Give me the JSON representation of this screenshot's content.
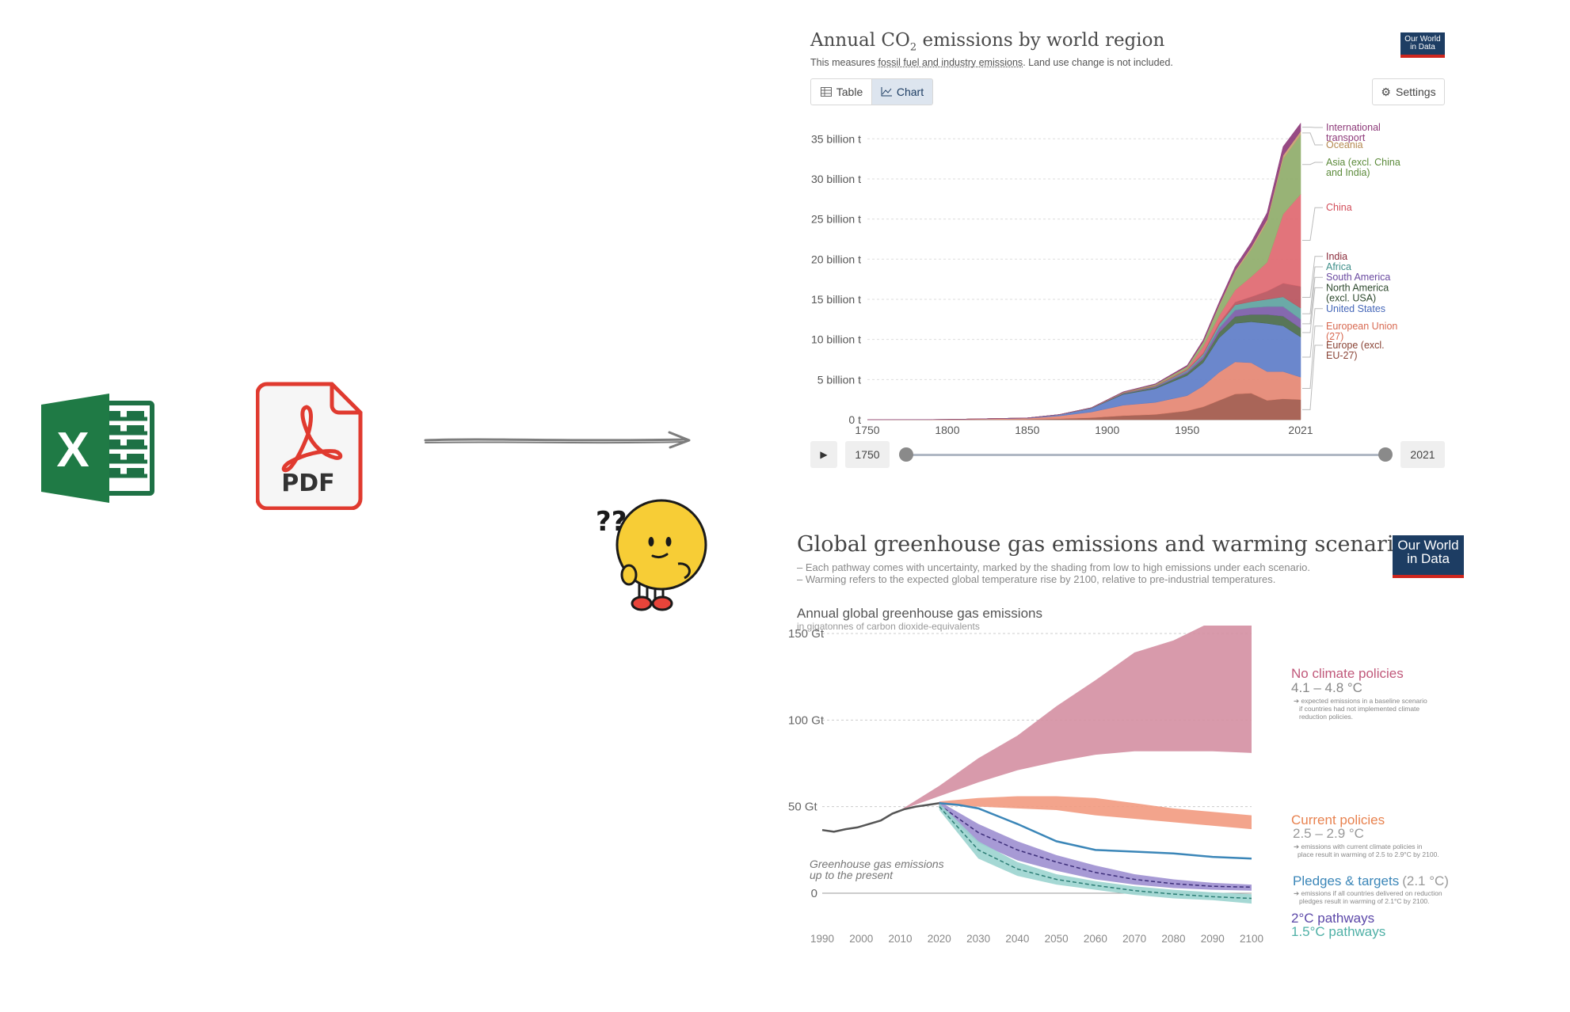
{
  "icons": {
    "excel": "excel-icon",
    "pdf": "pdf-icon",
    "arrow": "right-arrow",
    "mascot": "confused-emoji-mascot"
  },
  "pdf_label": "PDF",
  "excel_letter": "X",
  "mascot_marks": "??",
  "chart1": {
    "title_pre": "Annual CO",
    "title_sub": "2",
    "title_post": " emissions by world region",
    "subtitle_pre": "This measures ",
    "subtitle_link": "fossil fuel and industry emissions",
    "subtitle_post": ". Land use change is not included.",
    "logo_line1": "Our World",
    "logo_line2": "in Data",
    "tab_table": "Table",
    "tab_chart": "Chart",
    "settings": "Settings",
    "slider_start": "1750",
    "slider_end": "2021"
  },
  "chart2": {
    "title": "Global greenhouse gas emissions and warming scenarios",
    "note1": "– Each pathway comes with uncertainty, marked by the shading from low to high emissions under each scenario.",
    "note2": "– Warming refers to the expected global temperature rise by 2100, relative to pre-industrial temperatures.",
    "logo_line1": "Our World",
    "logo_line2": "in Data",
    "axis_title": "Annual global greenhouse gas emissions",
    "axis_subtitle": "in gigatonnes of carbon dioxide-equivalents",
    "history_label_1": "Greenhouse gas emissions",
    "history_label_2": "up to the present",
    "label_no_policy": "No climate policies",
    "temp_no_policy": "4.1 – 4.8 °C",
    "note_no_policy_1": "➔ expected emissions in a baseline scenario",
    "note_no_policy_2": "if countries had not implemented climate",
    "note_no_policy_3": "reduction policies.",
    "label_current": "Current policies",
    "temp_current": "2.5 – 2.9 °C",
    "note_current_1": "➔ emissions with current climate policies in",
    "note_current_2": "place result in warming of 2.5 to 2.9°C by 2100.",
    "label_pledges": "Pledges & targets",
    "temp_pledges": "(2.1 °C)",
    "note_pledges_1": "➔ emissions if all countries delivered on reduction",
    "note_pledges_2": "pledges result in warming of 2.1°C by 2100.",
    "label_2c": "2°C pathways",
    "label_15c": "1.5°C pathways"
  },
  "chart_data": [
    {
      "type": "area",
      "title": "Annual CO₂ emissions by world region",
      "subtitle": "This measures fossil fuel and industry emissions. Land use change is not included.",
      "xlabel": "",
      "ylabel": "",
      "xlim": [
        1750,
        2021
      ],
      "ylim": [
        0,
        37
      ],
      "x_ticks": [
        "1750",
        "1800",
        "1850",
        "1900",
        "1950",
        "2021"
      ],
      "y_ticks": [
        "0 t",
        "5 billion t",
        "10 billion t",
        "15 billion t",
        "20 billion t",
        "25 billion t",
        "30 billion t",
        "35 billion t"
      ],
      "grid": true,
      "legend": "right",
      "x": [
        1750,
        1800,
        1850,
        1870,
        1890,
        1910,
        1930,
        1950,
        1960,
        1970,
        1980,
        1990,
        2000,
        2010,
        2021
      ],
      "series": [
        {
          "name": "Europe (excl. EU-27)",
          "color": "#a2584a",
          "values": [
            0,
            0.01,
            0.05,
            0.12,
            0.25,
            0.5,
            0.65,
            1.1,
            1.6,
            2.4,
            3.2,
            3.3,
            2.4,
            2.6,
            2.5
          ]
        },
        {
          "name": "European Union (27)",
          "color": "#e58773",
          "values": [
            0,
            0.02,
            0.12,
            0.35,
            0.7,
            1.3,
            1.5,
            1.9,
            2.6,
            3.5,
            4.0,
            3.8,
            3.6,
            3.4,
            2.8
          ]
        },
        {
          "name": "United States",
          "color": "#5e7dc8",
          "values": [
            0,
            0,
            0.05,
            0.15,
            0.45,
            1.35,
            1.7,
            2.5,
            2.9,
            4.3,
            4.8,
            5.1,
            6.0,
            5.7,
            5.0
          ]
        },
        {
          "name": "North America (excl. USA)",
          "color": "#4a6a4a",
          "values": [
            0,
            0,
            0,
            0.01,
            0.03,
            0.08,
            0.15,
            0.3,
            0.45,
            0.65,
            0.85,
            0.9,
            1.1,
            1.2,
            1.1
          ]
        },
        {
          "name": "South America",
          "color": "#7b5ca8",
          "values": [
            0,
            0,
            0,
            0,
            0.01,
            0.04,
            0.08,
            0.2,
            0.35,
            0.55,
            0.8,
            0.85,
            1.0,
            1.2,
            1.1
          ]
        },
        {
          "name": "Africa",
          "color": "#5ea3a0",
          "values": [
            0,
            0,
            0,
            0,
            0.01,
            0.03,
            0.06,
            0.15,
            0.25,
            0.45,
            0.65,
            0.75,
            0.9,
            1.2,
            1.4
          ]
        },
        {
          "name": "India",
          "color": "#b8545d",
          "values": [
            0,
            0,
            0,
            0.01,
            0.02,
            0.05,
            0.08,
            0.1,
            0.15,
            0.2,
            0.35,
            0.6,
            1.0,
            1.7,
            2.7
          ]
        },
        {
          "name": "China",
          "color": "#e06870",
          "values": [
            0,
            0,
            0,
            0,
            0.01,
            0.02,
            0.03,
            0.08,
            0.8,
            0.9,
            1.5,
            2.5,
            3.6,
            8.6,
            11.5
          ]
        },
        {
          "name": "Asia (excl. China and India)",
          "color": "#8fad6a",
          "values": [
            0,
            0,
            0,
            0,
            0.01,
            0.05,
            0.12,
            0.25,
            0.5,
            1.2,
            2.2,
            3.4,
            5.0,
            6.9,
            7.4
          ]
        },
        {
          "name": "Oceania",
          "color": "#c8a070",
          "values": [
            0,
            0,
            0,
            0,
            0,
            0.01,
            0.02,
            0.05,
            0.08,
            0.14,
            0.22,
            0.28,
            0.35,
            0.43,
            0.45
          ]
        },
        {
          "name": "International transport",
          "color": "#8e3b7a",
          "values": [
            0,
            0,
            0,
            0,
            0.01,
            0.05,
            0.08,
            0.15,
            0.25,
            0.35,
            0.5,
            0.6,
            0.85,
            1.1,
            1.0
          ]
        }
      ]
    },
    {
      "type": "area",
      "title": "Global greenhouse gas emissions and warming scenarios",
      "ylabel": "Annual global greenhouse gas emissions",
      "y_unit": "in gigatonnes of carbon dioxide-equivalents",
      "xlabel": "",
      "xlim": [
        1990,
        2100
      ],
      "ylim": [
        0,
        150
      ],
      "x_ticks": [
        "1990",
        "2000",
        "2010",
        "2020",
        "2030",
        "2040",
        "2050",
        "2060",
        "2070",
        "2080",
        "2090",
        "2100"
      ],
      "y_ticks": [
        "0",
        "50 Gt",
        "100 Gt",
        "150 Gt"
      ],
      "grid": true,
      "legend": "right (direct labels)",
      "history": {
        "name": "Greenhouse gas emissions up to the present",
        "color": "#555555",
        "x": [
          1990,
          1993,
          1996,
          1999,
          2002,
          2005,
          2008,
          2011,
          2014,
          2017,
          2020
        ],
        "values": [
          36.5,
          35.5,
          37,
          38,
          40,
          42,
          46,
          48.5,
          50,
          51,
          52
        ]
      },
      "bands": [
        {
          "name": "No climate policies",
          "color": "#d48fa2",
          "x": [
            2010,
            2020,
            2030,
            2040,
            2050,
            2060,
            2070,
            2080,
            2090,
            2100
          ],
          "low": [
            48,
            56,
            64,
            71,
            76,
            80,
            82,
            82,
            82,
            81
          ],
          "high": [
            48,
            62,
            78,
            91,
            108,
            123,
            139,
            146,
            157,
            169
          ]
        },
        {
          "name": "Current policies",
          "color": "#f29a80",
          "x": [
            2020,
            2030,
            2040,
            2050,
            2060,
            2070,
            2080,
            2090,
            2100
          ],
          "low": [
            51,
            50,
            49,
            48,
            45,
            43,
            41,
            39,
            37
          ],
          "high": [
            53,
            55,
            56,
            56,
            55,
            52,
            49,
            47,
            45
          ]
        },
        {
          "name": "2°C pathways",
          "color": "#9d8fd0",
          "x": [
            2020,
            2030,
            2040,
            2050,
            2060,
            2070,
            2080,
            2090,
            2100
          ],
          "low": [
            49,
            29,
            19,
            13,
            8,
            5,
            3,
            2,
            1.5
          ],
          "high": [
            53,
            40,
            30,
            22,
            16,
            11,
            8,
            6,
            5
          ],
          "mid": [
            51,
            35,
            25,
            18,
            12,
            8,
            5.5,
            4,
            3.5
          ]
        },
        {
          "name": "1.5°C pathways",
          "color": "#9bd4cf",
          "x": [
            2020,
            2030,
            2040,
            2050,
            2060,
            2070,
            2080,
            2090,
            2100
          ],
          "low": [
            48,
            20,
            10,
            5,
            2,
            -1,
            -3,
            -4,
            -6
          ],
          "high": [
            52,
            30,
            18,
            11,
            7,
            4,
            2,
            0.5,
            -0.5
          ],
          "mid": [
            50,
            25,
            14,
            8,
            4.5,
            1.5,
            -0.5,
            -2,
            -3
          ]
        }
      ],
      "lines": [
        {
          "name": "Pledges & targets",
          "color": "#3b86b8",
          "x": [
            2020,
            2025,
            2030,
            2040,
            2050,
            2060,
            2070,
            2080,
            2090,
            2100
          ],
          "values": [
            52,
            51,
            49,
            40,
            30,
            25,
            24,
            23,
            21,
            20
          ]
        }
      ]
    }
  ]
}
